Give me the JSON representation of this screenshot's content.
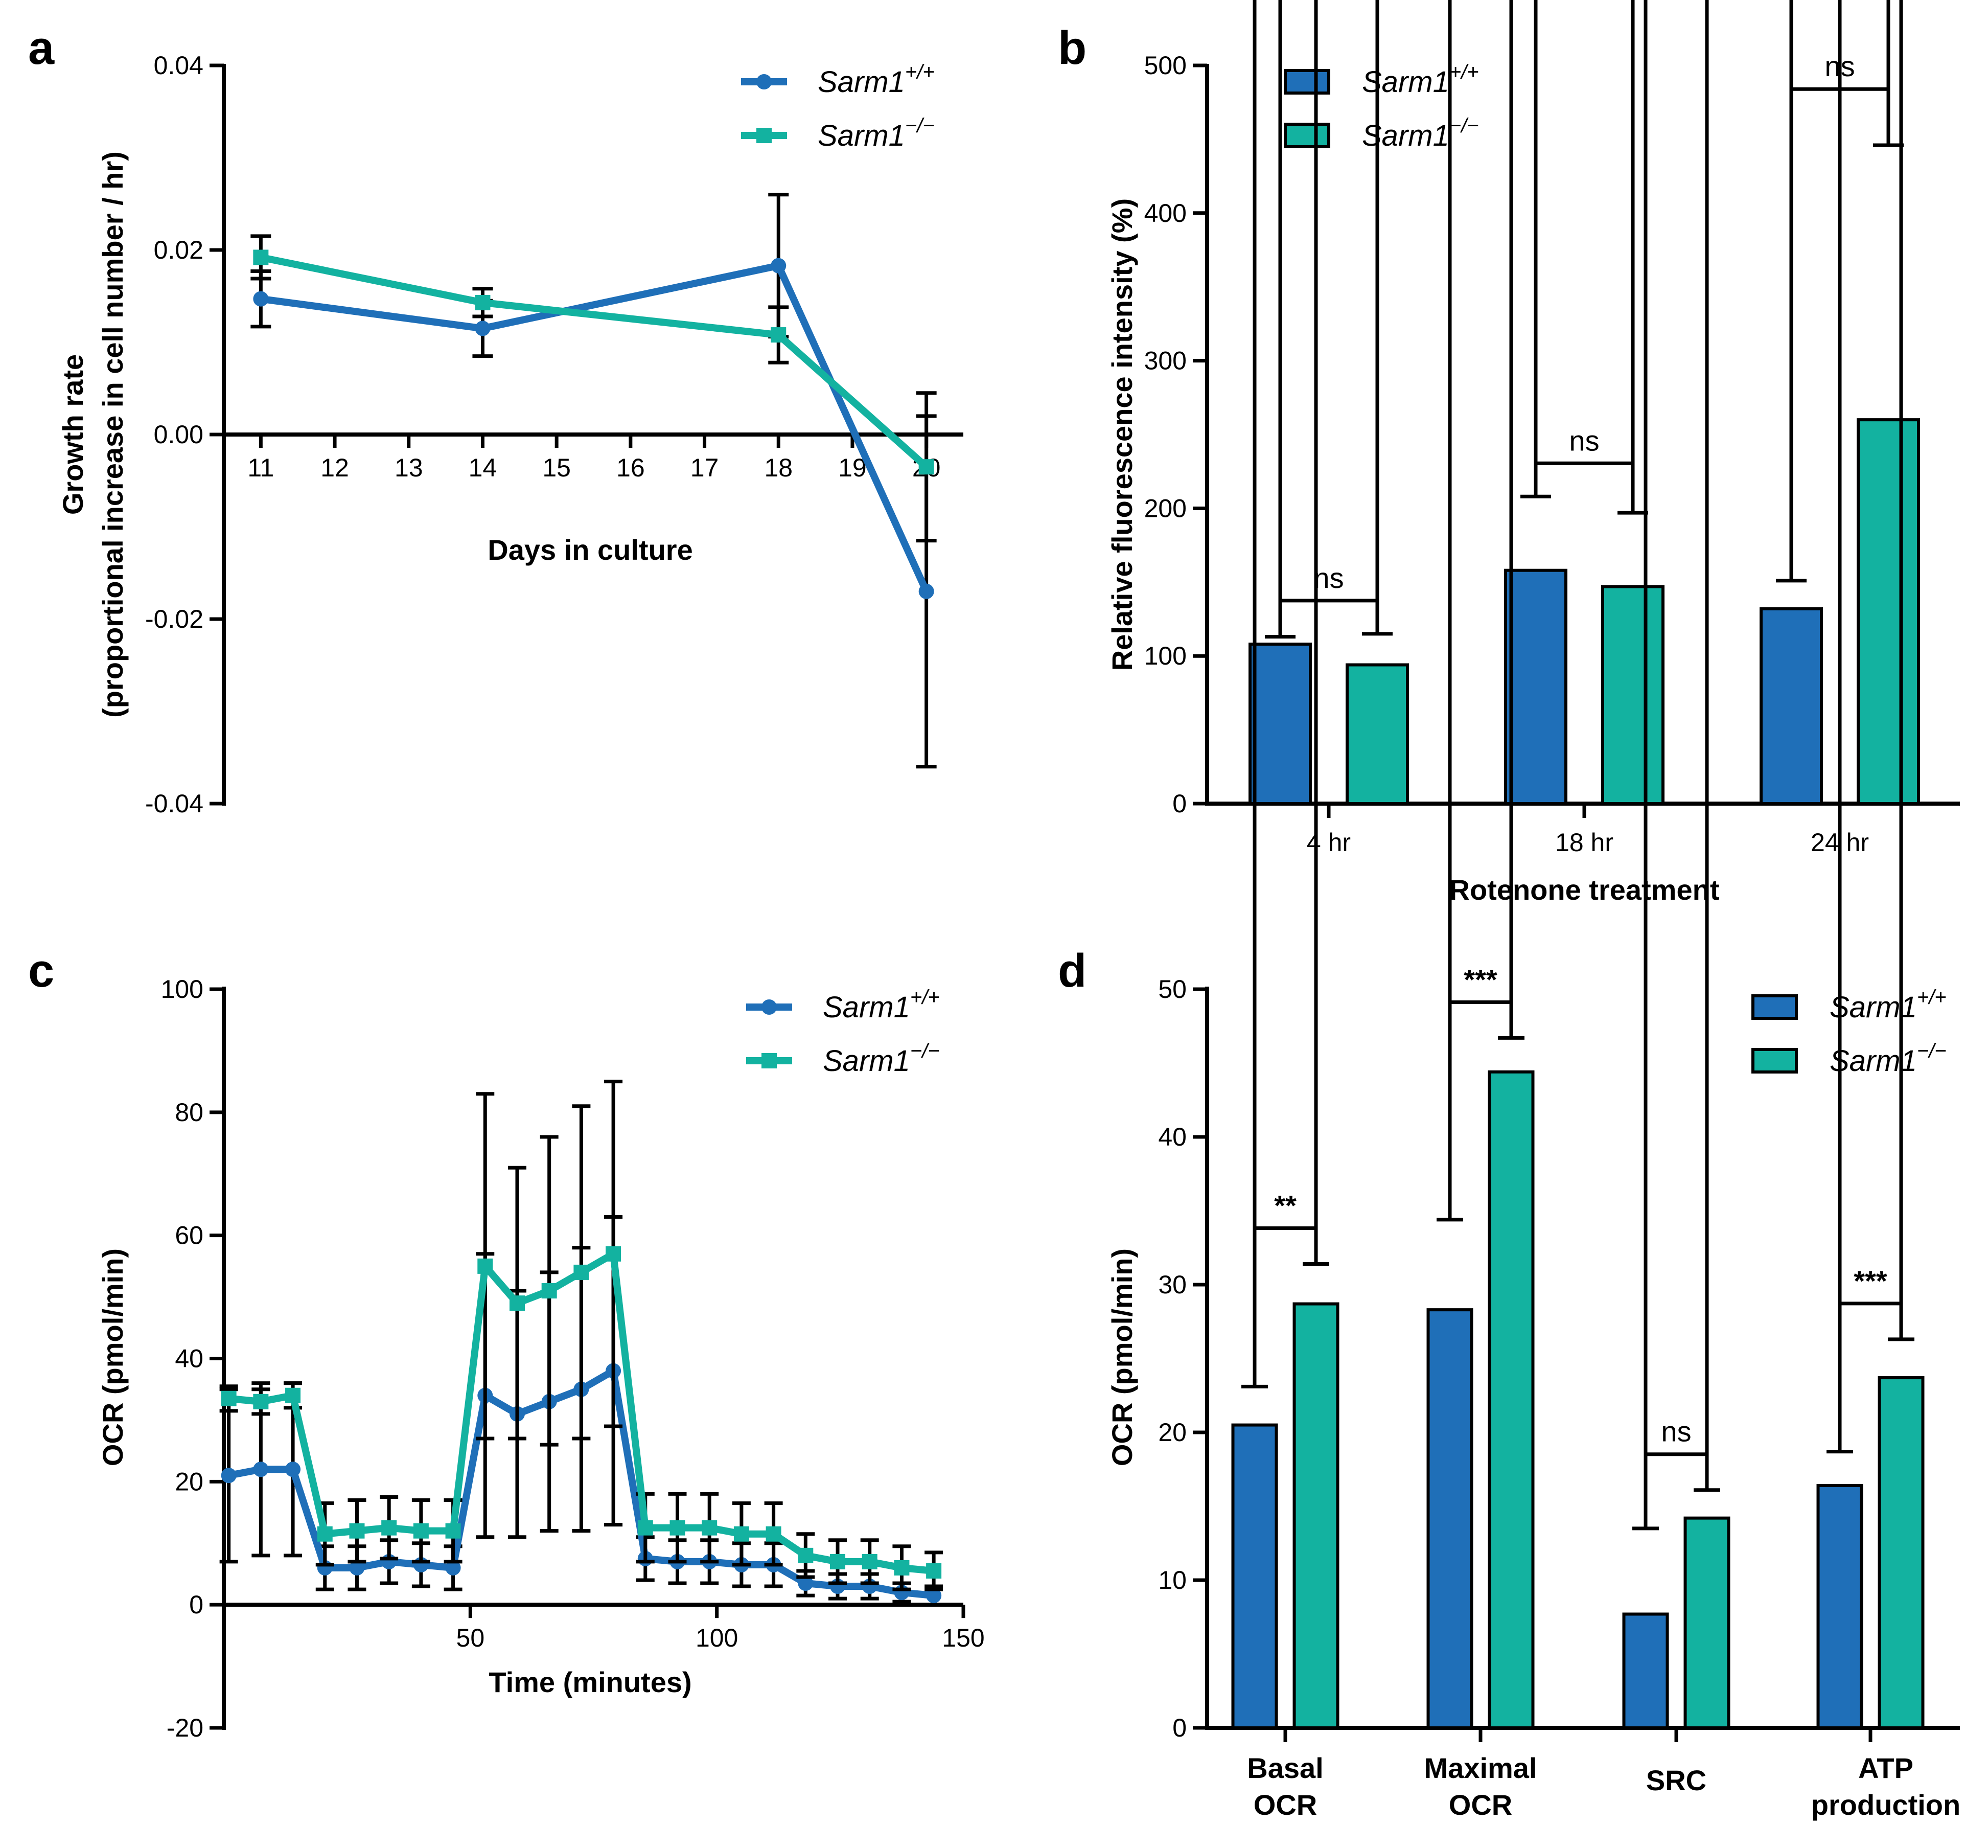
{
  "colors": {
    "wt": "#1f6fb8",
    "ko": "#13b2a0",
    "axis": "#000000"
  },
  "chart_data": [
    {
      "panel": "a",
      "type": "line",
      "xlabel": "Days in culture",
      "ylabel_line1": "Growth rate",
      "ylabel_line2": "(proportional increase in cell number / hr)",
      "xlim": [
        10.5,
        20.5
      ],
      "ylim": [
        -0.04,
        0.04
      ],
      "xticks": [
        11,
        12,
        13,
        14,
        15,
        16,
        17,
        18,
        19,
        20
      ],
      "yticks": [
        0.04,
        0.02,
        0.0,
        -0.02,
        -0.04
      ],
      "ytick_labels": [
        "0.04",
        "0.02",
        "0.00",
        "-0.02",
        "-0.04"
      ],
      "series": [
        {
          "name": "Sarm1",
          "superscript": "+/+",
          "key": "wt",
          "x": [
            11,
            14,
            18,
            20
          ],
          "y": [
            0.0147,
            0.0115,
            0.0183,
            -0.017
          ],
          "err": [
            0.003,
            0.003,
            0.0077,
            0.019
          ]
        },
        {
          "name": "Sarm1",
          "superscript": "−/−",
          "key": "ko",
          "x": [
            11,
            14,
            18,
            20
          ],
          "y": [
            0.0192,
            0.0143,
            0.0108,
            -0.0035
          ],
          "err": [
            0.0023,
            0.0015,
            0.003,
            0.008
          ]
        }
      ]
    },
    {
      "panel": "b",
      "type": "bar",
      "xlabel": "Rotenone treatment",
      "ylabel": "Relative fluorescence intensity (%)",
      "ylim": [
        0,
        500
      ],
      "yticks": [
        0,
        100,
        200,
        300,
        400,
        500
      ],
      "categories": [
        "4 hr",
        "18 hr",
        "24 hr"
      ],
      "series": [
        {
          "name": "Sarm1",
          "superscript": "+/+",
          "key": "wt",
          "values": [
            108,
            158,
            132
          ],
          "err": [
            5,
            50,
            19
          ]
        },
        {
          "name": "Sarm1",
          "superscript": "−/−",
          "key": "ko",
          "values": [
            94,
            147,
            260
          ],
          "err": [
            21,
            50,
            186
          ]
        }
      ],
      "significance": [
        "ns",
        "ns",
        "ns"
      ]
    },
    {
      "panel": "c",
      "type": "line",
      "xlabel": "Time (minutes)",
      "ylabel": "OCR (pmol/min)",
      "xlim": [
        0,
        150
      ],
      "ylim": [
        -20,
        100
      ],
      "xticks": [
        50,
        100,
        150
      ],
      "yticks": [
        100,
        80,
        60,
        40,
        20,
        0,
        -20
      ],
      "series": [
        {
          "name": "Sarm1",
          "superscript": "+/+",
          "key": "wt",
          "x": [
            1,
            7.5,
            14,
            20.5,
            27,
            33.5,
            40,
            46.5,
            53,
            59.5,
            66,
            72.5,
            79,
            85.5,
            92,
            98.5,
            105,
            111.5,
            118,
            124.5,
            131,
            137.5,
            144
          ],
          "y": [
            21,
            22,
            22,
            6,
            6,
            7,
            6.5,
            6,
            34,
            31,
            33,
            35,
            38,
            7.5,
            7,
            7,
            6.5,
            6.5,
            3.5,
            3,
            3,
            2,
            1.5
          ],
          "err": [
            14,
            14,
            14,
            3.5,
            3.5,
            3.5,
            3.5,
            3.5,
            23,
            20,
            21,
            23,
            25,
            3.5,
            3.5,
            3.5,
            3.5,
            3.5,
            2,
            2,
            2,
            1.5,
            1.5
          ]
        },
        {
          "name": "Sarm1",
          "superscript": "−/−",
          "key": "ko",
          "x": [
            1,
            7.5,
            14,
            20.5,
            27,
            33.5,
            40,
            46.5,
            53,
            59.5,
            66,
            72.5,
            79,
            85.5,
            92,
            98.5,
            105,
            111.5,
            118,
            124.5,
            131,
            137.5,
            144
          ],
          "y": [
            33.5,
            33,
            34,
            11.5,
            12,
            12.5,
            12,
            12,
            55,
            49,
            51,
            54,
            57,
            12.5,
            12.5,
            12.5,
            11.5,
            11.5,
            8,
            7,
            7,
            6,
            5.5
          ],
          "err": [
            2,
            2,
            2,
            5,
            5,
            5,
            5,
            5,
            28,
            22,
            25,
            27,
            28,
            5.5,
            5.5,
            5.5,
            5,
            5,
            3.5,
            3.5,
            3.5,
            3.5,
            3
          ]
        }
      ]
    },
    {
      "panel": "d",
      "type": "bar",
      "ylabel": "OCR (pmol/min)",
      "ylim": [
        0,
        50
      ],
      "yticks": [
        0,
        10,
        20,
        30,
        40,
        50
      ],
      "categories": [
        [
          "Basal",
          "OCR"
        ],
        [
          "Maximal",
          "OCR"
        ],
        [
          "SRC"
        ],
        [
          "ATP",
          "production"
        ]
      ],
      "series": [
        {
          "name": "Sarm1",
          "superscript": "+/+",
          "key": "wt",
          "values": [
            20.5,
            28.3,
            7.7,
            16.4
          ],
          "err": [
            2.6,
            6.1,
            5.8,
            2.3
          ]
        },
        {
          "name": "Sarm1",
          "superscript": "−/−",
          "key": "ko",
          "values": [
            28.7,
            44.4,
            14.2,
            23.7
          ],
          "err": [
            2.7,
            2.3,
            1.9,
            2.6
          ]
        }
      ],
      "significance": [
        "**",
        "***",
        "ns",
        "***"
      ]
    }
  ]
}
